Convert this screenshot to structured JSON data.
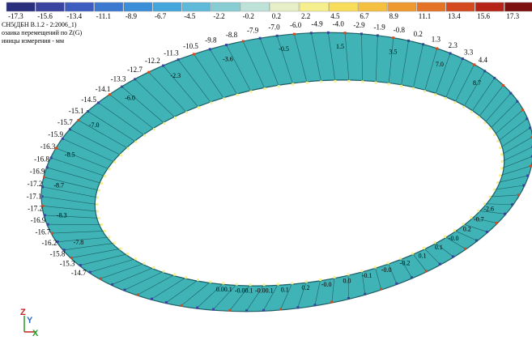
{
  "header": {
    "lines": [
      "CH5(ДБН В.1.2 - 2:2006_1)",
      "озаика перемещений по Z(G)",
      "иницы измерения - мм"
    ]
  },
  "legend": {
    "items": [
      {
        "value": -17.3,
        "color": "#2a2f7d"
      },
      {
        "value": -15.6,
        "color": "#3a43a0"
      },
      {
        "value": -13.4,
        "color": "#3d5cc0"
      },
      {
        "value": -11.1,
        "color": "#3b78d0"
      },
      {
        "value": -8.9,
        "color": "#3a8fd8"
      },
      {
        "value": -6.7,
        "color": "#44a6dd"
      },
      {
        "value": -4.5,
        "color": "#5fbad9"
      },
      {
        "value": -2.2,
        "color": "#87cdd3"
      },
      {
        "value": -0.2,
        "color": "#bfe2d8"
      },
      {
        "value": 0.2,
        "color": "#e6efc8"
      },
      {
        "value": 2.2,
        "color": "#f5ef8e"
      },
      {
        "value": 4.5,
        "color": "#f7dd5a"
      },
      {
        "value": 6.7,
        "color": "#f5c040"
      },
      {
        "value": 8.9,
        "color": "#ef9a30"
      },
      {
        "value": 11.1,
        "color": "#e57325"
      },
      {
        "value": 13.4,
        "color": "#d44a1e"
      },
      {
        "value": 15.6,
        "color": "#b62418"
      },
      {
        "value": 17.3,
        "color": "#7d1010"
      }
    ]
  },
  "ring": {
    "outer_labels": [
      "-14.7",
      "-15.3",
      "-15.8",
      "-16.2",
      "-16.7",
      "-16.9",
      "-17.2",
      "-17.1",
      "-17.2",
      "-16.9",
      "-16.8",
      "-16.3",
      "-15.9",
      "-15.7",
      "-15.1",
      "-14.5",
      "-14.1",
      "-13.3",
      "-12.7",
      "-12.2",
      "-11.3",
      "-10.5",
      "-9.8",
      "-8.8",
      "-7.9",
      "-7.0",
      "-6.0",
      "-4.9",
      "-4.0",
      "-2.9",
      "-1.9",
      "-0.8",
      "0.2",
      "1.3",
      "2.3",
      "3.3",
      "4.4"
    ],
    "inner_labels": [
      "-7.8",
      "-8.3",
      "-8.7",
      "-8.5",
      "-7.0",
      "-6.0",
      "-2.3",
      "-3.6",
      "-0.5",
      "1.5",
      "3.5",
      "7.0",
      "8.7"
    ],
    "bottom_labels": [
      "0.00.1",
      "-0.00.1",
      "-0.00.1",
      "0.1",
      "0.2",
      "-0.0",
      "0.0",
      "-0.1",
      "-0.0",
      "-0.2",
      "0.1",
      "0.1",
      "-0.0",
      "0.2",
      "-0.7",
      "-2.6"
    ]
  },
  "axes": {
    "z": "Z",
    "y": "Y",
    "x": "X"
  }
}
